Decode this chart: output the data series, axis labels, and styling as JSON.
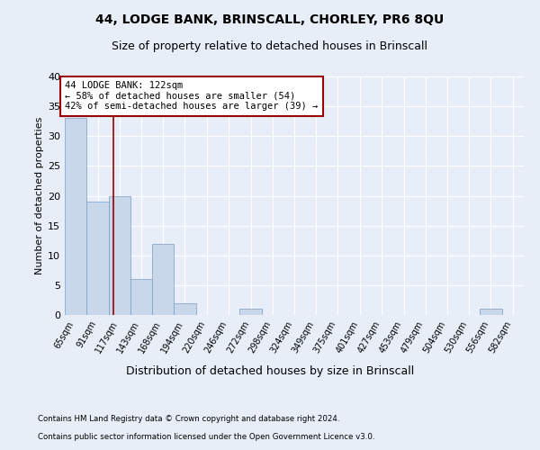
{
  "title": "44, LODGE BANK, BRINSCALL, CHORLEY, PR6 8QU",
  "subtitle": "Size of property relative to detached houses in Brinscall",
  "xlabel": "Distribution of detached houses by size in Brinscall",
  "ylabel": "Number of detached properties",
  "footnote1": "Contains HM Land Registry data © Crown copyright and database right 2024.",
  "footnote2": "Contains public sector information licensed under the Open Government Licence v3.0.",
  "bar_edges": [
    65,
    91,
    117,
    143,
    168,
    194,
    220,
    246,
    272,
    298,
    324,
    349,
    375,
    401,
    427,
    453,
    479,
    504,
    530,
    556,
    582
  ],
  "bar_heights": [
    33,
    19,
    20,
    6,
    12,
    2,
    0,
    0,
    1,
    0,
    0,
    0,
    0,
    0,
    0,
    0,
    0,
    0,
    0,
    1,
    0
  ],
  "bar_color": "#c8d8ea",
  "bar_edge_color": "#7a9cbf",
  "vline_x": 122,
  "vline_color": "#990000",
  "annotation_text": "44 LODGE BANK: 122sqm\n← 58% of detached houses are smaller (54)\n42% of semi-detached houses are larger (39) →",
  "annotation_box_color": "#990000",
  "annotation_text_color": "#000000",
  "ylim": [
    0,
    40
  ],
  "yticks": [
    0,
    5,
    10,
    15,
    20,
    25,
    30,
    35,
    40
  ],
  "bg_color": "#e8eef8",
  "plot_bg_color": "#e8eef8",
  "grid_color": "#ffffff",
  "tick_label_fontsize": 7,
  "title_fontsize": 10,
  "subtitle_fontsize": 9,
  "ylabel_fontsize": 8,
  "xlabel_fontsize": 9
}
